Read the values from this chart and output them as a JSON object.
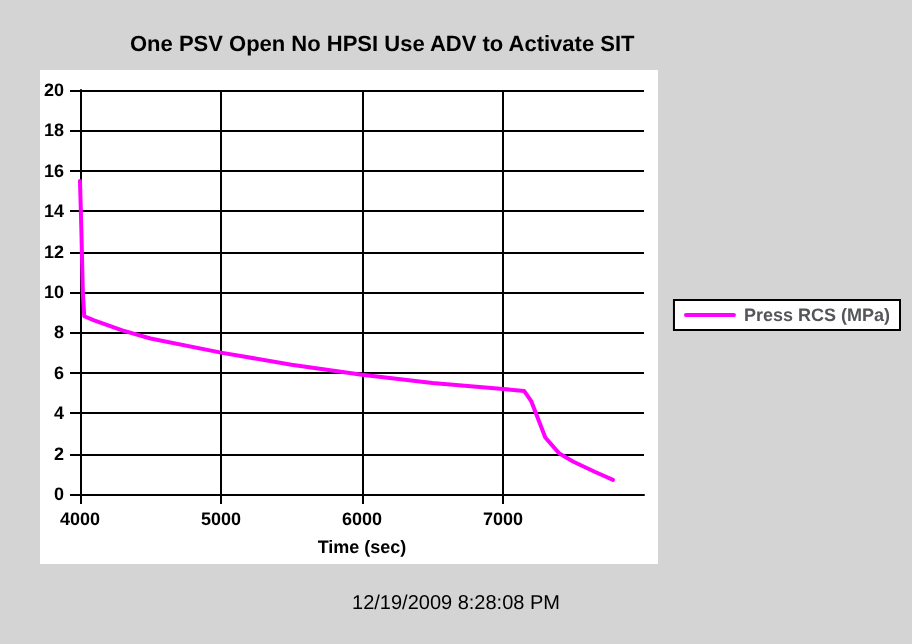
{
  "chart_data": {
    "type": "line",
    "title": "One PSV Open No HPSI Use ADV to Activate SIT",
    "xlabel": "Time (sec)",
    "annotations": [
      "12/19/2009 8:28:08 PM"
    ],
    "xlim": [
      4000,
      8000
    ],
    "xticks": [
      4000,
      5000,
      6000,
      7000
    ],
    "ylim": [
      0,
      20
    ],
    "yticks": [
      0,
      2,
      4,
      6,
      8,
      10,
      12,
      14,
      16,
      18,
      20
    ],
    "grid": true,
    "legend": "right",
    "marker": "none",
    "line_style": "solid",
    "series": [
      {
        "name": "Press RCS (MPa)",
        "color": "#ff00ff",
        "x": [
          4000,
          4010,
          4020,
          4030,
          4100,
          4300,
          4500,
          5000,
          5500,
          6000,
          6500,
          7000,
          7150,
          7200,
          7250,
          7300,
          7400,
          7500,
          7650,
          7780
        ],
        "values": [
          15.5,
          13,
          10,
          8.8,
          8.6,
          8.1,
          7.7,
          7.0,
          6.4,
          5.9,
          5.5,
          5.2,
          5.1,
          4.6,
          3.7,
          2.8,
          2.0,
          1.6,
          1.1,
          0.7
        ]
      }
    ]
  }
}
